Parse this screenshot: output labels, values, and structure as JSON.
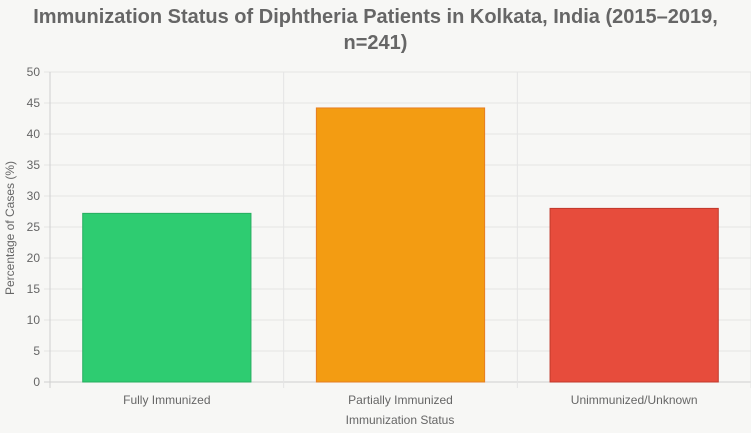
{
  "chart_data": {
    "type": "bar",
    "title": "Immunization Status of Diphtheria Patients in Kolkata, India (2015–2019, n=241)",
    "categories": [
      "Fully Immunized",
      "Partially Immunized",
      "Unimmunized/Unknown"
    ],
    "values": [
      27.2,
      44.2,
      28.0
    ],
    "colors": [
      "#2ecc71",
      "#f39c12",
      "#e74c3c"
    ],
    "border_colors": [
      "#27ae60",
      "#e67e22",
      "#c0392b"
    ],
    "xlabel": "Immunization Status",
    "ylabel": "Percentage of Cases (%)",
    "ylim": [
      0,
      50
    ],
    "yticks": [
      0,
      5,
      10,
      15,
      20,
      25,
      30,
      35,
      40,
      45,
      50
    ],
    "grid": true,
    "legend": "none"
  }
}
